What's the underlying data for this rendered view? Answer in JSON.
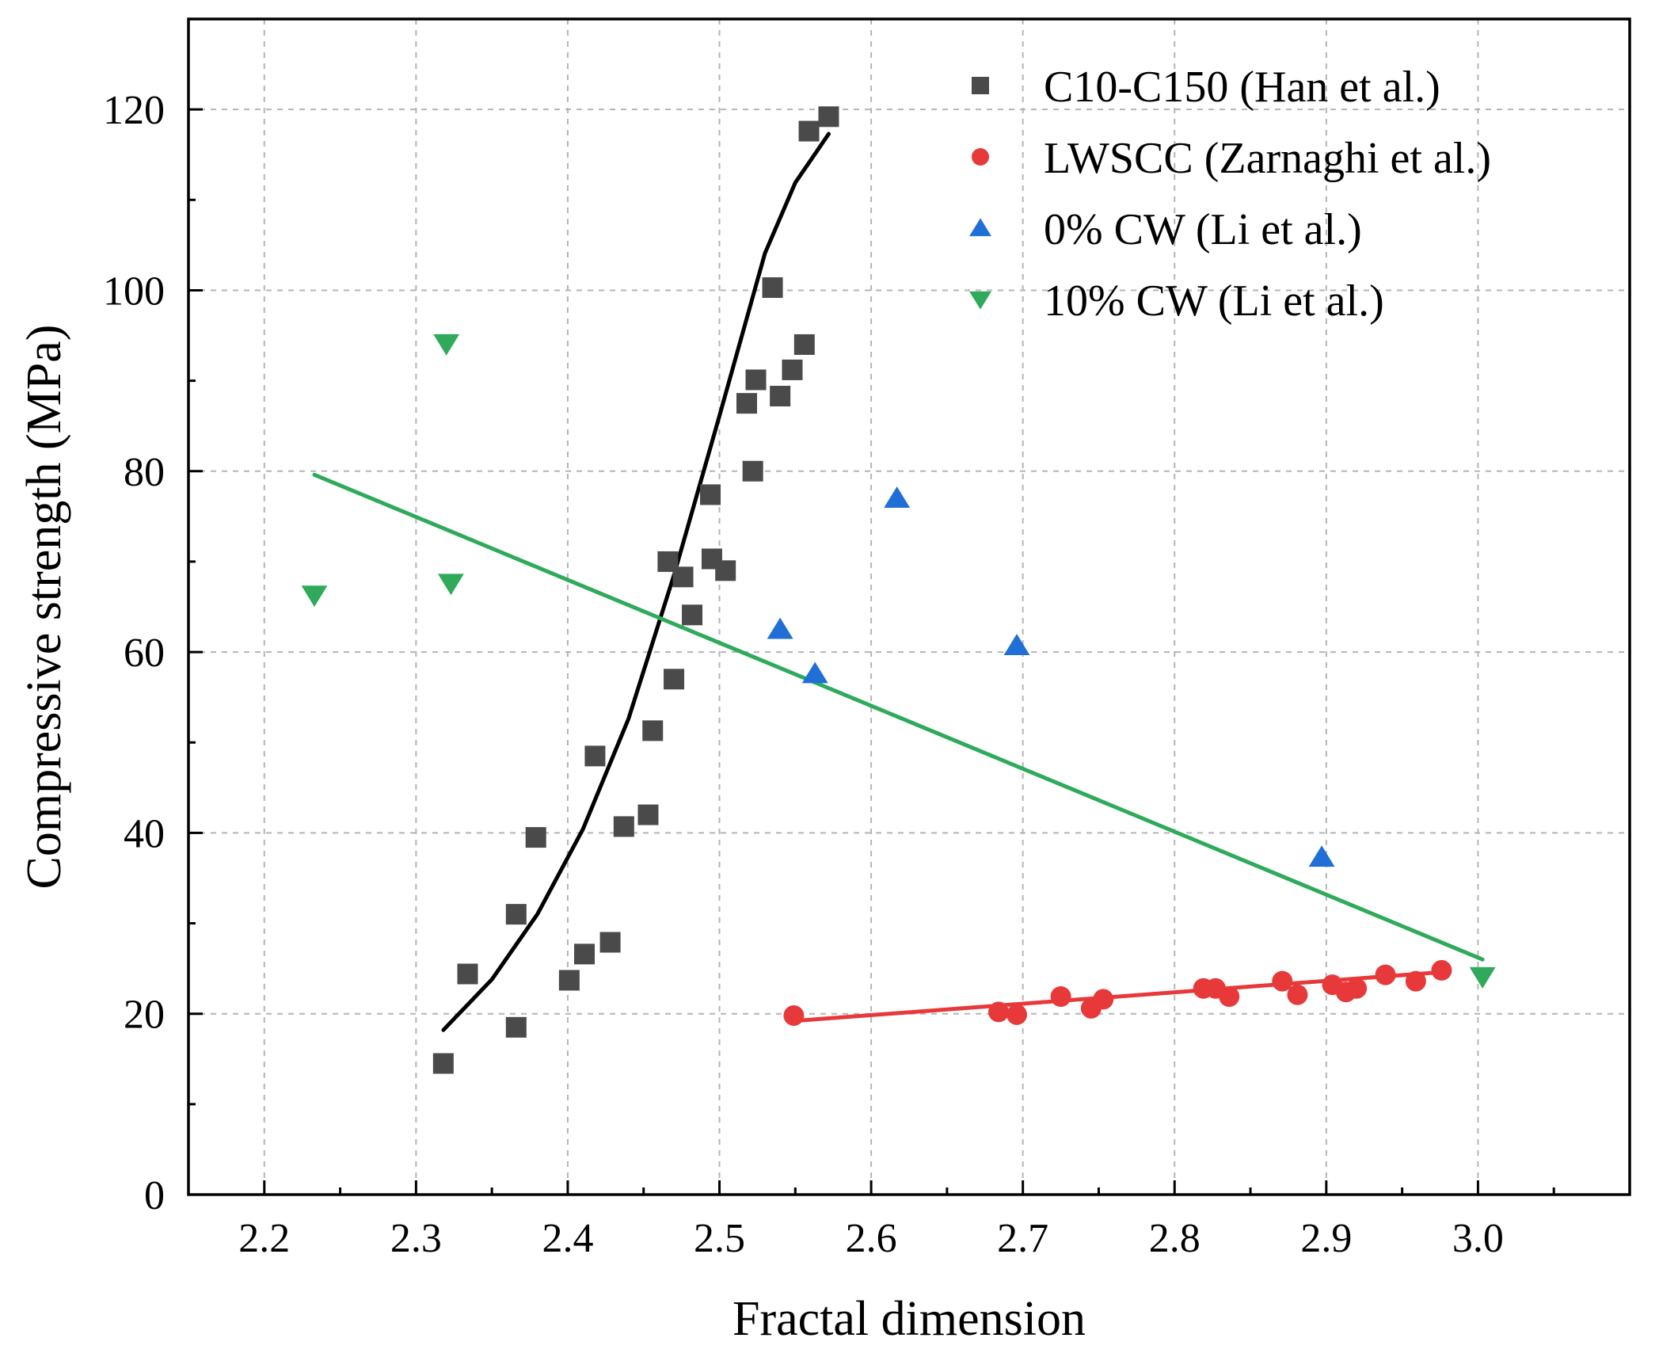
{
  "chart_data": {
    "type": "scatter",
    "title": "",
    "xlabel": "Fractal dimension",
    "ylabel": "Compressive strength (MPa)",
    "xlim": [
      2.15,
      3.1
    ],
    "ylim": [
      0,
      130
    ],
    "xticks": [
      2.2,
      2.3,
      2.4,
      2.5,
      2.6,
      2.7,
      2.8,
      2.9,
      3.0
    ],
    "xtick_labels": [
      "2.2",
      "2.3",
      "2.4",
      "2.5",
      "2.6",
      "2.7",
      "2.8",
      "2.9",
      "3.0"
    ],
    "yticks": [
      0,
      20,
      40,
      60,
      80,
      100,
      120
    ],
    "ytick_labels": [
      "0",
      "20",
      "40",
      "60",
      "80",
      "100",
      "120"
    ],
    "grid": true,
    "legend_position": "top-right",
    "series": [
      {
        "name": "C10-C150 (Han et al.)",
        "marker": "square",
        "color": "#4a4a4a",
        "points": [
          [
            2.318,
            14.5
          ],
          [
            2.334,
            24.4
          ],
          [
            2.366,
            18.5
          ],
          [
            2.366,
            31.0
          ],
          [
            2.379,
            39.5
          ],
          [
            2.401,
            23.7
          ],
          [
            2.411,
            26.6
          ],
          [
            2.418,
            48.5
          ],
          [
            2.428,
            27.9
          ],
          [
            2.437,
            40.7
          ],
          [
            2.453,
            42.0
          ],
          [
            2.456,
            51.3
          ],
          [
            2.466,
            70.0
          ],
          [
            2.47,
            57.0
          ],
          [
            2.476,
            68.3
          ],
          [
            2.482,
            64.1
          ],
          [
            2.494,
            77.4
          ],
          [
            2.495,
            70.3
          ],
          [
            2.504,
            69.0
          ],
          [
            2.518,
            87.5
          ],
          [
            2.522,
            80.0
          ],
          [
            2.524,
            90.1
          ],
          [
            2.535,
            100.3
          ],
          [
            2.54,
            88.3
          ],
          [
            2.548,
            91.2
          ],
          [
            2.556,
            94.0
          ],
          [
            2.559,
            117.6
          ],
          [
            2.572,
            119.2
          ]
        ]
      },
      {
        "name": "LWSCC (Zarnaghi et al.)",
        "marker": "circle",
        "color": "#e8393a",
        "points": [
          [
            2.549,
            19.8
          ],
          [
            2.684,
            20.2
          ],
          [
            2.696,
            19.9
          ],
          [
            2.725,
            21.9
          ],
          [
            2.745,
            20.6
          ],
          [
            2.753,
            21.6
          ],
          [
            2.819,
            22.8
          ],
          [
            2.827,
            22.8
          ],
          [
            2.836,
            21.9
          ],
          [
            2.871,
            23.6
          ],
          [
            2.881,
            22.1
          ],
          [
            2.904,
            23.2
          ],
          [
            2.913,
            22.4
          ],
          [
            2.92,
            22.8
          ],
          [
            2.939,
            24.3
          ],
          [
            2.959,
            23.6
          ],
          [
            2.976,
            24.8
          ]
        ]
      },
      {
        "name": "0% CW (Li et al.)",
        "marker": "triangle-up",
        "color": "#1f6fd6",
        "points": [
          [
            2.54,
            62.5
          ],
          [
            2.563,
            57.6
          ],
          [
            2.617,
            77.0
          ],
          [
            2.696,
            60.7
          ],
          [
            2.897,
            37.3
          ]
        ]
      },
      {
        "name": "10% CW (Li et al.)",
        "marker": "triangle-down",
        "color": "#2eaa5a",
        "points": [
          [
            2.233,
            66.3
          ],
          [
            2.32,
            94.1
          ],
          [
            2.323,
            67.6
          ],
          [
            3.003,
            24.1
          ]
        ]
      }
    ],
    "fits": [
      {
        "series": "C10-C150 (Han et al.)",
        "type": "exponential",
        "color": "#000000",
        "x_range": [
          2.318,
          2.572
        ],
        "points": [
          [
            2.318,
            18.2
          ],
          [
            2.35,
            23.8
          ],
          [
            2.38,
            31.0
          ],
          [
            2.41,
            40.4
          ],
          [
            2.44,
            52.6
          ],
          [
            2.47,
            68.5
          ],
          [
            2.5,
            86.1
          ],
          [
            2.53,
            104.1
          ],
          [
            2.55,
            111.9
          ],
          [
            2.572,
            117.3
          ]
        ]
      },
      {
        "series": "LWSCC (Zarnaghi et al.)",
        "type": "linear",
        "color": "#e8393a",
        "points": [
          [
            2.549,
            19.2
          ],
          [
            2.976,
            24.6
          ]
        ]
      },
      {
        "series": "10% CW (Li et al.)",
        "type": "linear",
        "color": "#2eaa5a",
        "points": [
          [
            2.233,
            79.6
          ],
          [
            3.003,
            26.0
          ]
        ]
      }
    ]
  }
}
